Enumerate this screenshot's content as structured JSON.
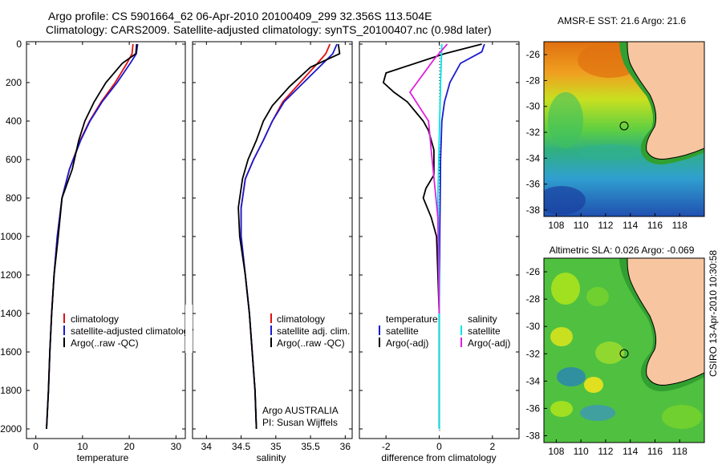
{
  "header": {
    "title_line1": "Argo profile: CS 5901664_62 06-Apr-2010 20100409_299 32.356S 113.504E",
    "title_line2": "Climatology: CARS2009. Satellite-adjusted climatology: synTS_20100407.nc (0.98d later)"
  },
  "timestamp": "CSIRO 13-Apr-2010 10:30:58",
  "colors": {
    "climatology": "#e01010",
    "satellite": "#1a1ad0",
    "argo": "#000000",
    "salinity_satellite": "#00e5e5",
    "salinity_argo": "#e020e0",
    "land": "#f7c6a0"
  },
  "chart_data": [
    {
      "type": "line",
      "name": "temperature-panel",
      "xlabel": "temperature",
      "ylabel": "",
      "xlim": [
        -2,
        32
      ],
      "ylim": [
        2050,
        0
      ],
      "xticks": [
        0,
        10,
        20,
        30
      ],
      "yticks": [
        0,
        200,
        400,
        600,
        800,
        1000,
        1200,
        1400,
        1600,
        1800,
        2000
      ],
      "legend": [
        "climatology",
        "satellite-adjusted climatology",
        "Argo(..raw -QC)"
      ],
      "series": [
        {
          "name": "climatology",
          "color": "#e01010",
          "x": [
            20.8,
            20.6,
            19.5,
            17,
            14,
            11.5,
            9.5,
            7.2,
            5.6,
            4.6,
            3.9,
            3.4,
            3.0,
            2.7,
            2.5,
            2.3
          ],
          "y": [
            0,
            50,
            100,
            200,
            300,
            400,
            500,
            650,
            800,
            1000,
            1200,
            1400,
            1600,
            1800,
            1900,
            2000
          ]
        },
        {
          "name": "satellite-adjusted climatology",
          "color": "#1a1ad0",
          "x": [
            21.8,
            21.5,
            20.2,
            17.4,
            14.2,
            11.6,
            9.6,
            7.2,
            5.6,
            4.6,
            3.9,
            3.4,
            3.0,
            2.7,
            2.5,
            2.3
          ],
          "y": [
            0,
            50,
            100,
            200,
            300,
            400,
            500,
            650,
            800,
            1000,
            1200,
            1400,
            1600,
            1800,
            1900,
            2000
          ]
        },
        {
          "name": "Argo(..raw -QC)",
          "color": "#000000",
          "x": [
            21.6,
            21.4,
            18.5,
            15,
            12.5,
            10.5,
            9.2,
            7.8,
            5.6,
            4.8,
            3.9,
            3.4,
            3.0,
            2.7,
            2.5,
            2.3
          ],
          "y": [
            0,
            50,
            100,
            200,
            300,
            400,
            500,
            650,
            800,
            1000,
            1200,
            1400,
            1600,
            1800,
            1900,
            2000
          ]
        }
      ]
    },
    {
      "type": "line",
      "name": "salinity-panel",
      "xlabel": "salinity",
      "ylabel": "",
      "xlim": [
        33.8,
        36.1
      ],
      "ylim": [
        2050,
        0
      ],
      "xticks": [
        34,
        34.5,
        35,
        35.5,
        36
      ],
      "legend": [
        "climatology",
        "satellite adj. clim.",
        "Argo(..raw -QC)"
      ],
      "annotations": [
        "Argo AUSTRALIA",
        "PI: Susan Wijffels"
      ],
      "series": [
        {
          "name": "climatology",
          "color": "#e01010",
          "x": [
            35.78,
            35.72,
            35.6,
            35.35,
            35.1,
            34.95,
            34.82,
            34.68,
            34.56,
            34.5,
            34.5,
            34.56,
            34.62,
            34.66,
            34.7,
            34.72
          ],
          "y": [
            0,
            50,
            100,
            200,
            300,
            400,
            500,
            600,
            700,
            850,
            1000,
            1200,
            1400,
            1600,
            1800,
            2000
          ]
        },
        {
          "name": "satellite adj. clim.",
          "color": "#1a1ad0",
          "x": [
            35.88,
            35.82,
            35.68,
            35.4,
            35.12,
            34.95,
            34.82,
            34.68,
            34.56,
            34.5,
            34.5,
            34.56,
            34.62,
            34.66,
            34.7,
            34.72
          ],
          "y": [
            0,
            50,
            100,
            200,
            300,
            400,
            500,
            600,
            700,
            850,
            1000,
            1200,
            1400,
            1600,
            1800,
            2000
          ]
        },
        {
          "name": "Argo(..raw -QC)",
          "color": "#000000",
          "x": [
            35.9,
            35.92,
            35.5,
            35.2,
            34.95,
            34.82,
            34.72,
            34.6,
            34.52,
            34.46,
            34.48,
            34.56,
            34.62,
            34.66,
            34.7,
            34.72
          ],
          "y": [
            0,
            50,
            120,
            220,
            320,
            400,
            500,
            600,
            700,
            850,
            1000,
            1200,
            1400,
            1600,
            1800,
            2000
          ]
        }
      ]
    },
    {
      "type": "line",
      "name": "difference-panel",
      "xlabel": "difference from climatology",
      "ylabel": "",
      "xlim": [
        -3,
        3
      ],
      "ylim": [
        2050,
        0
      ],
      "xticks": [
        -2,
        0,
        2
      ],
      "legend_temperature_title": "temperature",
      "legend_salinity_title": "salinity",
      "legend": [
        "satellite",
        "Argo(-adj)",
        "satellite",
        "Argo(-adj)"
      ],
      "series": [
        {
          "name": "temperature satellite",
          "color": "#1a1ad0",
          "x": [
            1.7,
            1.6,
            0.8,
            0.4,
            0.2,
            0.1,
            0.05,
            0.02,
            0.0,
            0.0,
            0.0
          ],
          "y": [
            0,
            40,
            100,
            200,
            300,
            400,
            600,
            1000,
            1400,
            1800,
            2000
          ]
        },
        {
          "name": "temperature Argo(-adj)",
          "color": "#000000",
          "x": [
            1.6,
            0.2,
            -2.0,
            -2.1,
            -1.7,
            -1.2,
            -0.9,
            -0.6,
            -0.4,
            -0.2,
            -0.2,
            -0.5,
            -0.6,
            -0.3,
            -0.1,
            0.0,
            0.0
          ],
          "y": [
            0,
            50,
            150,
            200,
            250,
            300,
            350,
            400,
            450,
            550,
            680,
            750,
            800,
            900,
            1000,
            1400,
            2000
          ]
        },
        {
          "name": "salinity satellite",
          "color": "#00e5e5",
          "x": [
            0.1,
            0.05,
            0.0,
            -0.05,
            0.0,
            0.0,
            0.0
          ],
          "y": [
            0,
            200,
            500,
            800,
            1200,
            1600,
            2000
          ]
        },
        {
          "name": "salinity Argo(-adj)",
          "color": "#e020e0",
          "x": [
            0.3,
            -0.2,
            -1.1,
            -0.4,
            -0.3,
            -0.05,
            0.0
          ],
          "y": [
            0,
            80,
            250,
            400,
            550,
            900,
            1400
          ]
        }
      ]
    },
    {
      "type": "heatmap",
      "name": "sst-map",
      "title": "AMSR-E SST: 21.6 Argo: 21.6",
      "xticks": [
        108,
        110,
        112,
        114,
        116,
        118
      ],
      "yticks": [
        -26,
        -28,
        -30,
        -32,
        -34,
        -36,
        -38
      ],
      "xlim": [
        107,
        120
      ],
      "ylim": [
        -38.5,
        -25
      ],
      "profile_location": [
        113.504,
        -32.356
      ]
    },
    {
      "type": "heatmap",
      "name": "sla-map",
      "title": "Altimetric SLA: 0.026 Argo: -0.069",
      "xticks": [
        108,
        110,
        112,
        114,
        116,
        118
      ],
      "yticks": [
        -26,
        -28,
        -30,
        -32,
        -34,
        -36,
        -38
      ],
      "xlim": [
        107,
        120
      ],
      "ylim": [
        -38.5,
        -25
      ],
      "profile_location": [
        113.504,
        -32.356
      ]
    }
  ]
}
